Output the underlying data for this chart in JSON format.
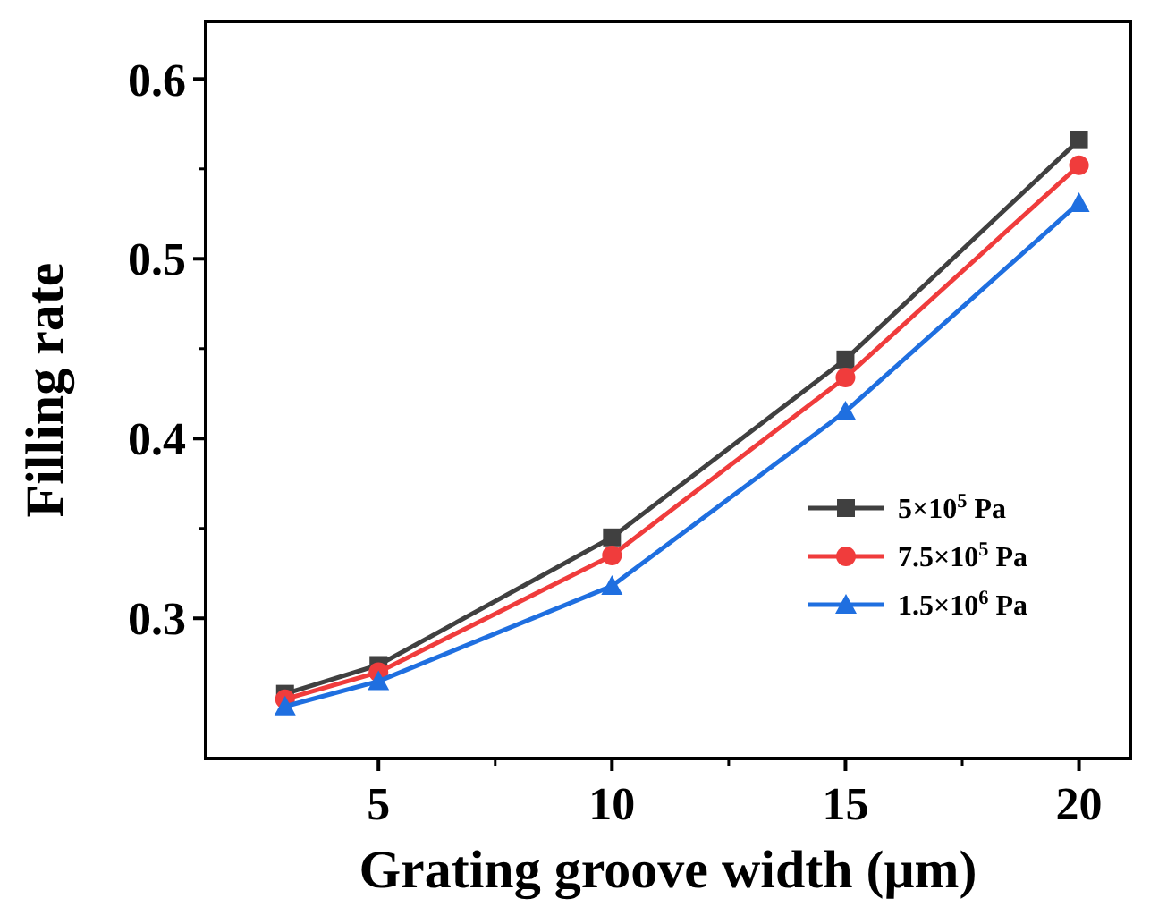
{
  "chart_data": {
    "type": "line",
    "xlabel": "Grating groove width (μm)",
    "ylabel": "Filling rate",
    "x": [
      3,
      5,
      10,
      15,
      20
    ],
    "xlim": [
      1.3,
      21.1
    ],
    "xticks": [
      5,
      10,
      15,
      20
    ],
    "ylim": [
      0.222,
      0.632
    ],
    "yticks": [
      0.3,
      0.4,
      0.5,
      0.6
    ],
    "legend": "bottom right",
    "grid": false,
    "series": [
      {
        "name": "5×10$^{5}$ Pa",
        "color": "#404040",
        "marker": "square",
        "values": [
          0.258,
          0.274,
          0.345,
          0.444,
          0.566
        ]
      },
      {
        "name": "7.5×10$^{5}$ Pa",
        "color": "#f03c3c",
        "marker": "circle",
        "values": [
          0.255,
          0.27,
          0.335,
          0.434,
          0.552
        ]
      },
      {
        "name": "1.5×10$^{6}$ Pa",
        "color": "#1f6fe0",
        "marker": "triangle",
        "values": [
          0.251,
          0.265,
          0.318,
          0.415,
          0.531
        ]
      }
    ]
  }
}
